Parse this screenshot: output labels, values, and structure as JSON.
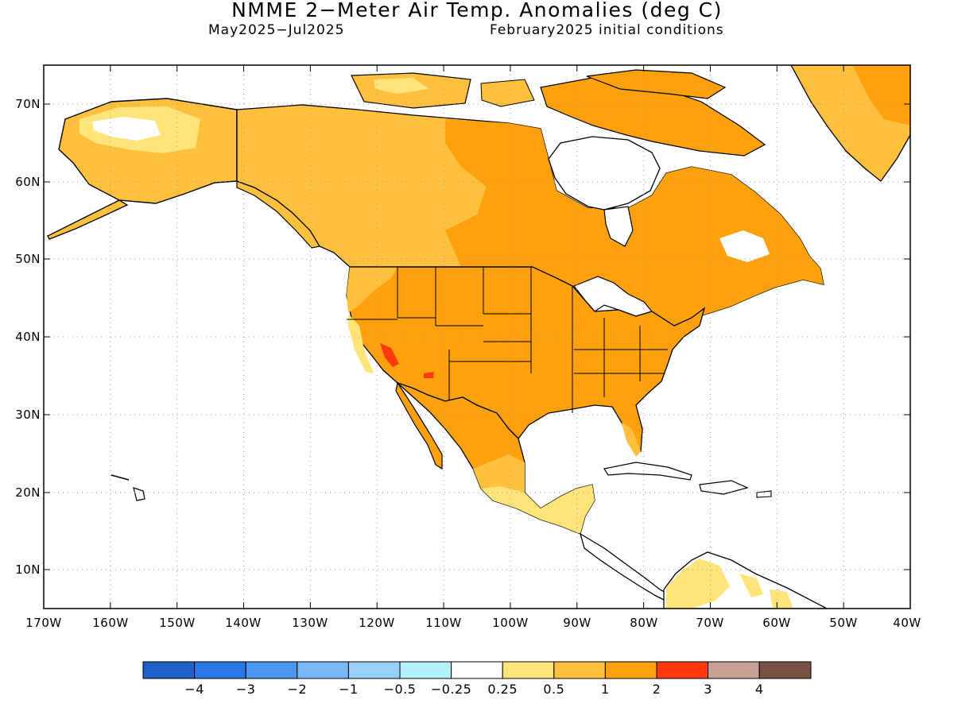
{
  "title": "NMME 2−Meter Air Temp. Anomalies (deg C)",
  "subtitle_left": "May2025−Jul2025",
  "subtitle_right": "February2025 initial conditions",
  "lat_labels": [
    "70N",
    "60N",
    "50N",
    "40N",
    "30N",
    "20N",
    "10N"
  ],
  "lon_labels": [
    "170W",
    "160W",
    "150W",
    "140W",
    "130W",
    "120W",
    "110W",
    "100W",
    "90W",
    "80W",
    "70W",
    "60W",
    "50W",
    "40W"
  ],
  "colorbar": {
    "colors": [
      "#1d62c9",
      "#2a78e8",
      "#4a98f0",
      "#78b8f6",
      "#98d0fa",
      "#b4f0fa",
      "#ffffff",
      "#ffe47a",
      "#ffc03e",
      "#ffa10c",
      "#ff3a10",
      "#c9a096",
      "#7a5245"
    ],
    "labels": [
      "−4",
      "−3",
      "−2",
      "−1",
      "−0.5",
      "−0.25",
      "0.25",
      "0.5",
      "1",
      "2",
      "3",
      "4"
    ]
  },
  "anomaly_colors": {
    "light": "#ffe47a",
    "medium": "#ffc03e",
    "strong": "#ffa10c",
    "extreme": "#ff3a10"
  }
}
